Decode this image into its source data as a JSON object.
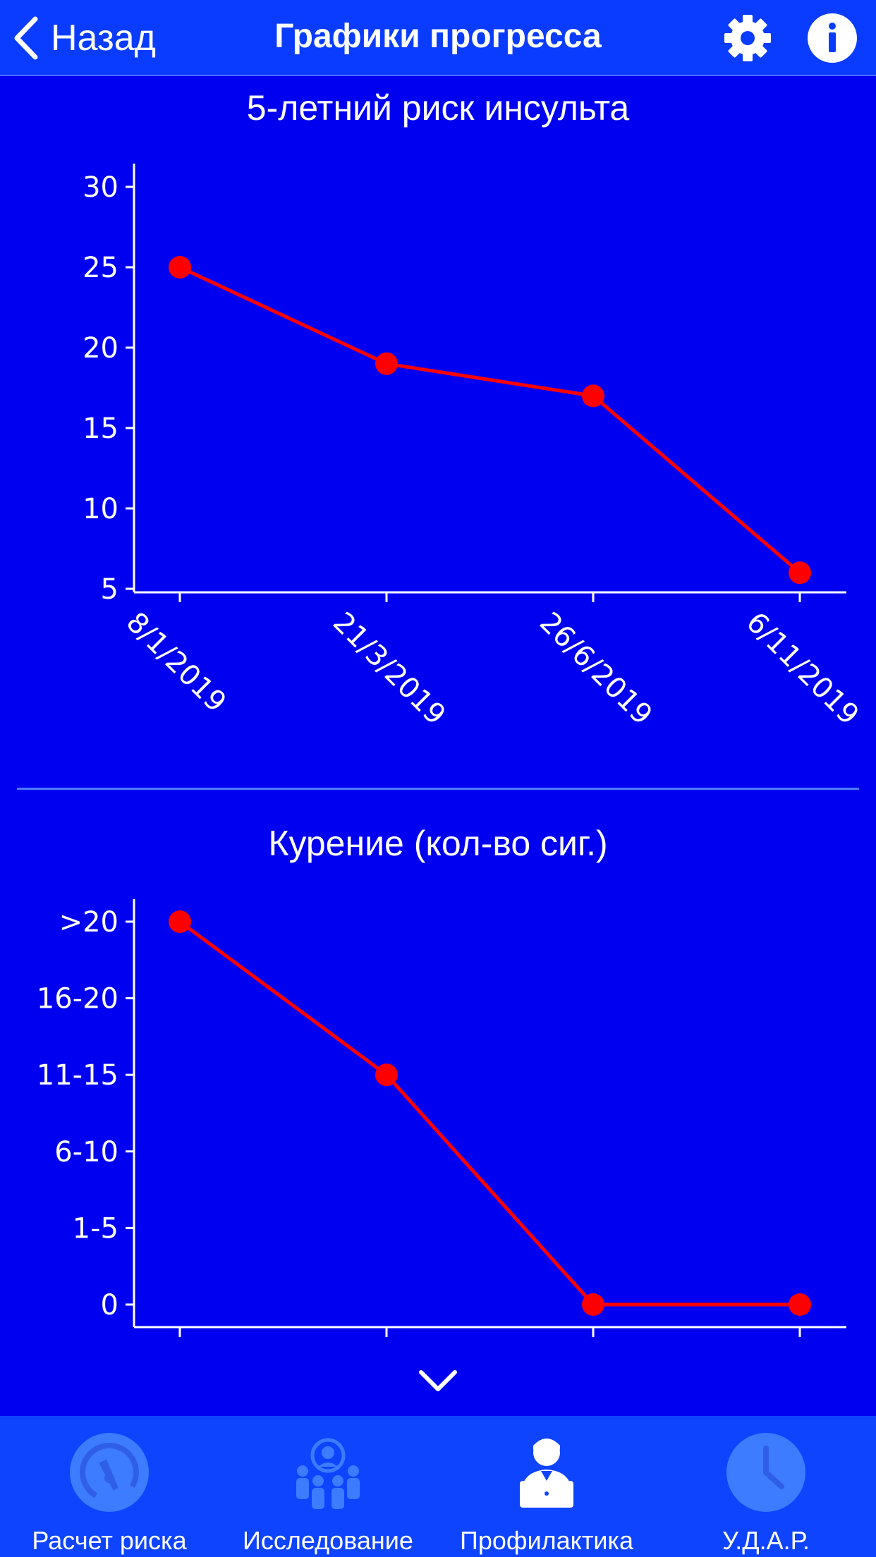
{
  "navbar": {
    "back_label": "Назад",
    "title": "Графики прогресса",
    "settings_icon": "gear-icon",
    "info_icon": "info-icon"
  },
  "chart_data": [
    {
      "type": "line",
      "title": "5-летний риск инсульта",
      "x": [
        "8/1/2019",
        "21/3/2019",
        "26/6/2019",
        "6/11/2019"
      ],
      "series": [
        {
          "values": [
            25,
            19,
            17,
            6
          ],
          "color": "#ff0000"
        }
      ],
      "yticks": [
        5,
        10,
        15,
        20,
        25,
        30
      ],
      "ylim": [
        5,
        30.5
      ],
      "xlabel": "",
      "ylabel": "",
      "grid": false
    },
    {
      "type": "line",
      "title": "Курение (кол-во сиг.)",
      "x": [
        "8/1/2019",
        "21/3/2019",
        "26/6/2019",
        "6/11/2019"
      ],
      "y_categories": [
        "0",
        "1-5",
        "6-10",
        "11-15",
        "16-20",
        ">20"
      ],
      "series": [
        {
          "values": [
            ">20",
            "11-15",
            "0",
            "0"
          ],
          "color": "#ff0000"
        }
      ],
      "xlabel": "",
      "ylabel": "",
      "grid": false
    }
  ],
  "tabbar": {
    "items": [
      {
        "label": "Расчет риска",
        "icon": "speedometer-icon",
        "active": false
      },
      {
        "label": "Исследование",
        "icon": "group-research-icon",
        "active": false
      },
      {
        "label": "Профилактика",
        "icon": "doctor-laptop-icon",
        "active": true
      },
      {
        "label": "У.Д.А.Р.",
        "icon": "clock-icon",
        "active": false
      }
    ]
  },
  "colors": {
    "background": "#0000f0",
    "navbar": "#0a3cff",
    "tabbar": "#0f44ff",
    "line": "#ff0000",
    "inactive_icon": "#3d7bff"
  }
}
